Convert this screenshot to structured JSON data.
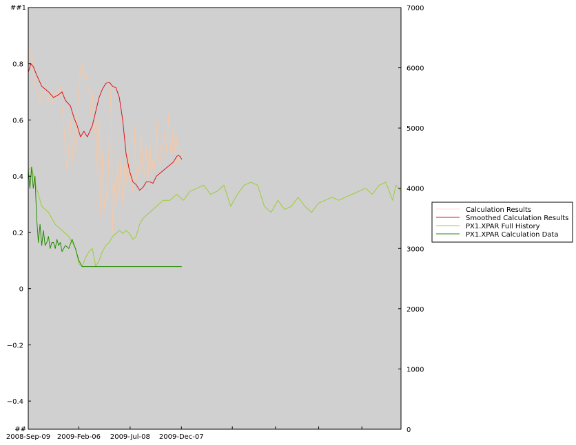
{
  "chart_data": {
    "type": "line",
    "title": "",
    "xlabel": "",
    "ylabel": "",
    "left_axis": {
      "ylim": [
        -0.5,
        1.0
      ],
      "ticks": [
        -0.4,
        -0.2,
        0,
        0.2,
        0.4,
        0.6,
        0.8
      ],
      "tick_labels": [
        "−0.4",
        "−0.2",
        "0",
        "0.2",
        "0.4",
        "0.6",
        "0.8"
      ],
      "top_label": "##1",
      "bottom_label": "##"
    },
    "right_axis": {
      "ylim": [
        0,
        7000
      ],
      "ticks": [
        0,
        1000,
        2000,
        3000,
        4000,
        5000,
        6000,
        7000
      ],
      "tick_labels": [
        "0",
        "1000",
        "2000",
        "3000",
        "4000",
        "5000",
        "6000",
        "7000"
      ]
    },
    "x_axis": {
      "range_days": [
        0,
        1105
      ],
      "tick_days": [
        0,
        150,
        302,
        454,
        605,
        733,
        861,
        989,
        1105
      ],
      "labels": [
        {
          "day": 0,
          "text": "2008-Sep-09"
        },
        {
          "day": 150,
          "text": "2009-Feb-06"
        },
        {
          "day": 302,
          "text": "2009-Jul-08"
        },
        {
          "day": 454,
          "text": "2009-Dec-07"
        }
      ]
    },
    "plot_background": "#d0d0d0",
    "legend": {
      "placement": "center-right",
      "entries": [
        {
          "name": "Calculation Results",
          "color": "#ffd8d8"
        },
        {
          "name": "Smoothed Calculation Results",
          "color": "#e01010"
        },
        {
          "name": "PX1.XPAR Full History",
          "color": "#9acd32"
        },
        {
          "name": "PX1.XPAR Calculation Data",
          "color": "#228b00"
        }
      ]
    },
    "series": [
      {
        "name": "Calculation Results",
        "axis": "left",
        "color": "#f5c9a8",
        "x": [
          0,
          5,
          10,
          15,
          20,
          28,
          35,
          42,
          50,
          58,
          65,
          72,
          80,
          88,
          95,
          100,
          105,
          110,
          115,
          120,
          125,
          130,
          135,
          140,
          145,
          150,
          155,
          160,
          165,
          170,
          175,
          180,
          185,
          190,
          195,
          200,
          205,
          210,
          215,
          220,
          225,
          230,
          235,
          240,
          245,
          250,
          255,
          260,
          265,
          270,
          275,
          280,
          285,
          290,
          295,
          300,
          305,
          310,
          315,
          320,
          325,
          330,
          335,
          340,
          345,
          350,
          355,
          360,
          365,
          370,
          375,
          380,
          385,
          390,
          395,
          400,
          405,
          410,
          415,
          420,
          425,
          430,
          435,
          440,
          445,
          450,
          455
        ],
        "values": [
          0.8,
          0.86,
          0.84,
          0.78,
          0.72,
          0.7,
          0.66,
          0.7,
          0.68,
          0.66,
          0.7,
          0.66,
          0.7,
          0.68,
          0.72,
          0.65,
          0.6,
          0.48,
          0.42,
          0.5,
          0.6,
          0.44,
          0.55,
          0.48,
          0.62,
          0.72,
          0.78,
          0.8,
          0.75,
          0.77,
          0.74,
          0.7,
          0.62,
          0.7,
          0.55,
          0.6,
          0.4,
          0.62,
          0.25,
          0.48,
          0.28,
          0.36,
          0.3,
          0.55,
          0.72,
          0.2,
          0.38,
          0.3,
          0.46,
          0.32,
          0.48,
          0.3,
          0.44,
          0.36,
          0.52,
          0.36,
          0.42,
          0.34,
          0.58,
          0.38,
          0.44,
          0.4,
          0.55,
          0.42,
          0.4,
          0.5,
          0.38,
          0.54,
          0.4,
          0.46,
          0.42,
          0.6,
          0.48,
          0.44,
          0.52,
          0.5,
          0.56,
          0.48,
          0.62,
          0.52,
          0.46,
          0.58,
          0.48,
          0.54,
          0.44,
          0.5,
          0.48
        ]
      },
      {
        "name": "Smoothed Calculation Results",
        "axis": "left",
        "color": "#e01010",
        "x": [
          0,
          8,
          15,
          25,
          40,
          60,
          75,
          90,
          100,
          110,
          125,
          135,
          145,
          155,
          165,
          175,
          190,
          200,
          210,
          220,
          230,
          240,
          250,
          260,
          270,
          280,
          290,
          300,
          310,
          320,
          330,
          340,
          350,
          360,
          370,
          380,
          390,
          400,
          410,
          420,
          430,
          440,
          445,
          450,
          455
        ],
        "values": [
          0.77,
          0.8,
          0.79,
          0.76,
          0.72,
          0.7,
          0.68,
          0.69,
          0.7,
          0.67,
          0.65,
          0.61,
          0.58,
          0.54,
          0.56,
          0.54,
          0.58,
          0.63,
          0.68,
          0.71,
          0.73,
          0.735,
          0.72,
          0.715,
          0.68,
          0.6,
          0.48,
          0.42,
          0.38,
          0.37,
          0.35,
          0.36,
          0.38,
          0.38,
          0.375,
          0.4,
          0.41,
          0.42,
          0.43,
          0.44,
          0.45,
          0.47,
          0.475,
          0.47,
          0.46
        ]
      },
      {
        "name": "PX1.XPAR Full History",
        "axis": "right",
        "color": "#9acd32",
        "x": [
          0,
          10,
          20,
          30,
          40,
          60,
          80,
          100,
          120,
          140,
          150,
          160,
          170,
          180,
          190,
          195,
          200,
          210,
          220,
          230,
          240,
          250,
          260,
          270,
          280,
          290,
          300,
          310,
          320,
          330,
          340,
          360,
          380,
          400,
          420,
          440,
          460,
          480,
          500,
          520,
          540,
          560,
          580,
          600,
          620,
          640,
          660,
          680,
          700,
          720,
          740,
          760,
          780,
          800,
          820,
          840,
          860,
          880,
          900,
          920,
          940,
          960,
          980,
          1000,
          1020,
          1040,
          1060,
          1080,
          1090,
          1105
        ],
        "values": [
          4300,
          4350,
          4100,
          3900,
          3700,
          3600,
          3400,
          3300,
          3200,
          3000,
          2750,
          2700,
          2850,
          2950,
          3000,
          2850,
          2700,
          2800,
          2950,
          3050,
          3100,
          3200,
          3250,
          3300,
          3250,
          3300,
          3250,
          3150,
          3200,
          3400,
          3500,
          3600,
          3700,
          3800,
          3800,
          3900,
          3800,
          3950,
          4000,
          4050,
          3900,
          3950,
          4050,
          3700,
          3900,
          4050,
          4100,
          4050,
          3700,
          3600,
          3800,
          3650,
          3700,
          3850,
          3700,
          3600,
          3750,
          3800,
          3850,
          3800,
          3850,
          3900,
          3950,
          4000,
          3900,
          4050,
          4100,
          3800,
          4050,
          3950
        ]
      },
      {
        "name": "PX1.XPAR Calculation Data",
        "axis": "right",
        "color": "#228b00",
        "x": [
          0,
          5,
          10,
          15,
          20,
          25,
          30,
          35,
          40,
          45,
          50,
          55,
          60,
          65,
          70,
          75,
          80,
          85,
          90,
          95,
          100,
          110,
          120,
          130,
          140,
          150,
          155,
          160,
          165,
          170,
          175,
          180,
          185,
          190,
          195,
          200,
          210,
          220,
          240,
          260,
          280,
          300,
          320,
          340,
          360,
          380,
          400,
          420,
          440,
          455
        ],
        "values": [
          4300,
          4000,
          4350,
          4000,
          4200,
          3500,
          3100,
          3400,
          3050,
          3300,
          3050,
          3100,
          3200,
          3000,
          3100,
          3100,
          3000,
          3150,
          3050,
          3100,
          2950,
          3050,
          3000,
          3150,
          3000,
          2800,
          2750,
          2700,
          2700,
          2700,
          2700,
          2700,
          2700,
          2700,
          2700,
          2700,
          2700,
          2700,
          2700,
          2700,
          2700,
          2700,
          2700,
          2700,
          2700,
          2700,
          2700,
          2700,
          2700,
          2700
        ]
      }
    ]
  }
}
